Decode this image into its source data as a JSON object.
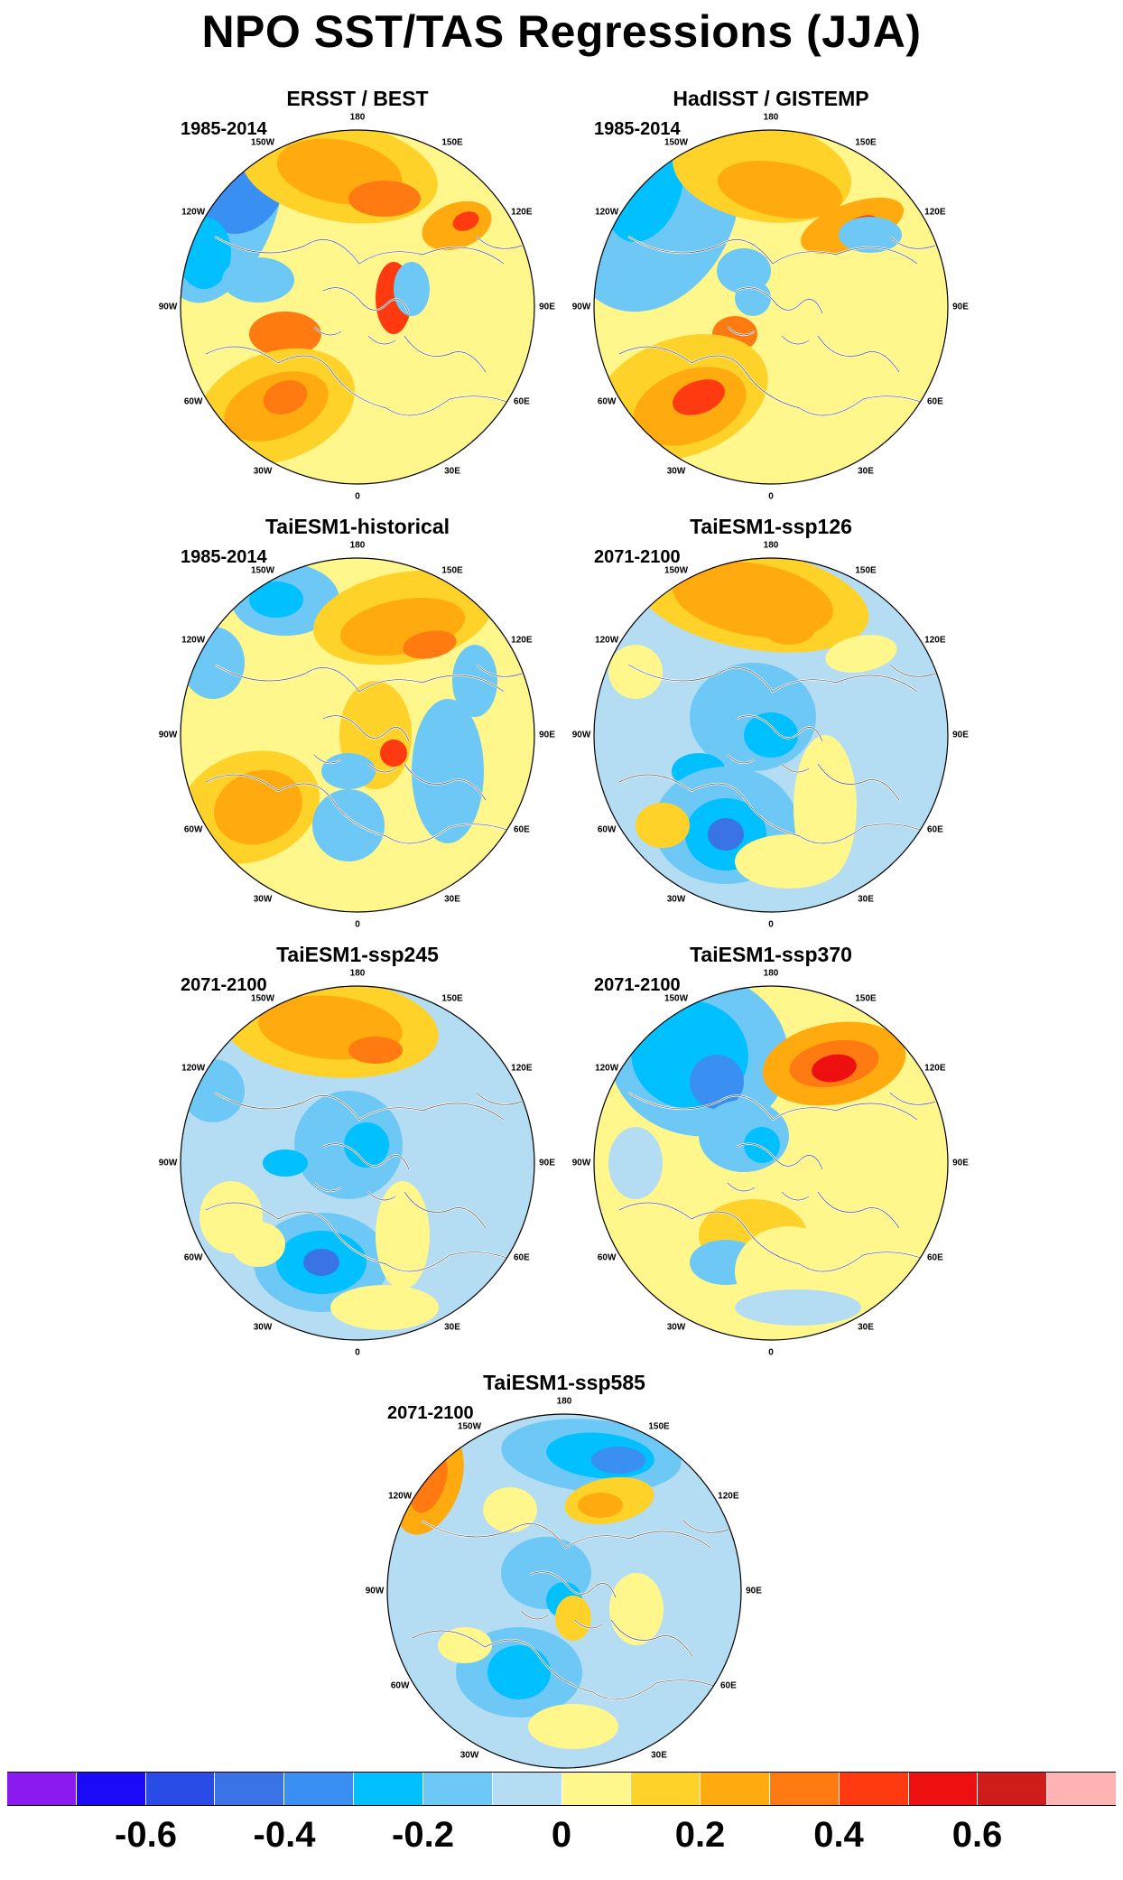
{
  "title": "NPO SST/TAS Regressions (JJA)",
  "lon_labels": [
    "180",
    "150E",
    "120E",
    "90E",
    "60E",
    "30E",
    "0",
    "30W",
    "60W",
    "90W",
    "120W",
    "150W"
  ],
  "colors": {
    "neg": [
      "#8a1aef",
      "#1a0af7",
      "#2a4ce6",
      "#3a73e6",
      "#3a8ff2",
      "#00c0ff",
      "#6ec8f5",
      "#b4dcf2"
    ],
    "pos": [
      "#fff68c",
      "#ffd22a",
      "#ffab0f",
      "#ff7a10",
      "#ff3a10",
      "#ee1010",
      "#d11c1c",
      "#ffb3b3"
    ],
    "land_coast": "#ffffff",
    "ice_coast": "#555555"
  },
  "panels": [
    {
      "title": "ERSST / BEST",
      "period": "1985-2014",
      "pattern": "obs1"
    },
    {
      "title": "HadISST / GISTEMP",
      "period": "1985-2014",
      "pattern": "obs2"
    },
    {
      "title": "TaiESM1-historical",
      "period": "1985-2014",
      "pattern": "hist"
    },
    {
      "title": "TaiESM1-ssp126",
      "period": "2071-2100",
      "pattern": "s126"
    },
    {
      "title": "TaiESM1-ssp245",
      "period": "2071-2100",
      "pattern": "s245"
    },
    {
      "title": "TaiESM1-ssp370",
      "period": "2071-2100",
      "pattern": "s370"
    },
    {
      "title": "TaiESM1-ssp585",
      "period": "2071-2100",
      "pattern": "s585"
    }
  ],
  "colorbar": {
    "levels": [
      "-0.7",
      "-0.6",
      "-0.5",
      "-0.4",
      "-0.3",
      "-0.2",
      "-0.1",
      "0",
      "0.1",
      "0.2",
      "0.3",
      "0.4",
      "0.5",
      "0.6",
      "0.7"
    ],
    "colors": [
      "#8a1aef",
      "#1a0af7",
      "#2a4ce6",
      "#3a73e6",
      "#3a8ff2",
      "#00c0ff",
      "#6ec8f5",
      "#b4dcf2",
      "#fff68c",
      "#ffd22a",
      "#ffab0f",
      "#ff7a10",
      "#ff3a10",
      "#ee1010",
      "#d11c1c",
      "#ffb3b3"
    ],
    "tick_labels": [
      "-0.6",
      "-0.4",
      "-0.2",
      "0",
      "0.2",
      "0.4",
      "0.6"
    ]
  }
}
